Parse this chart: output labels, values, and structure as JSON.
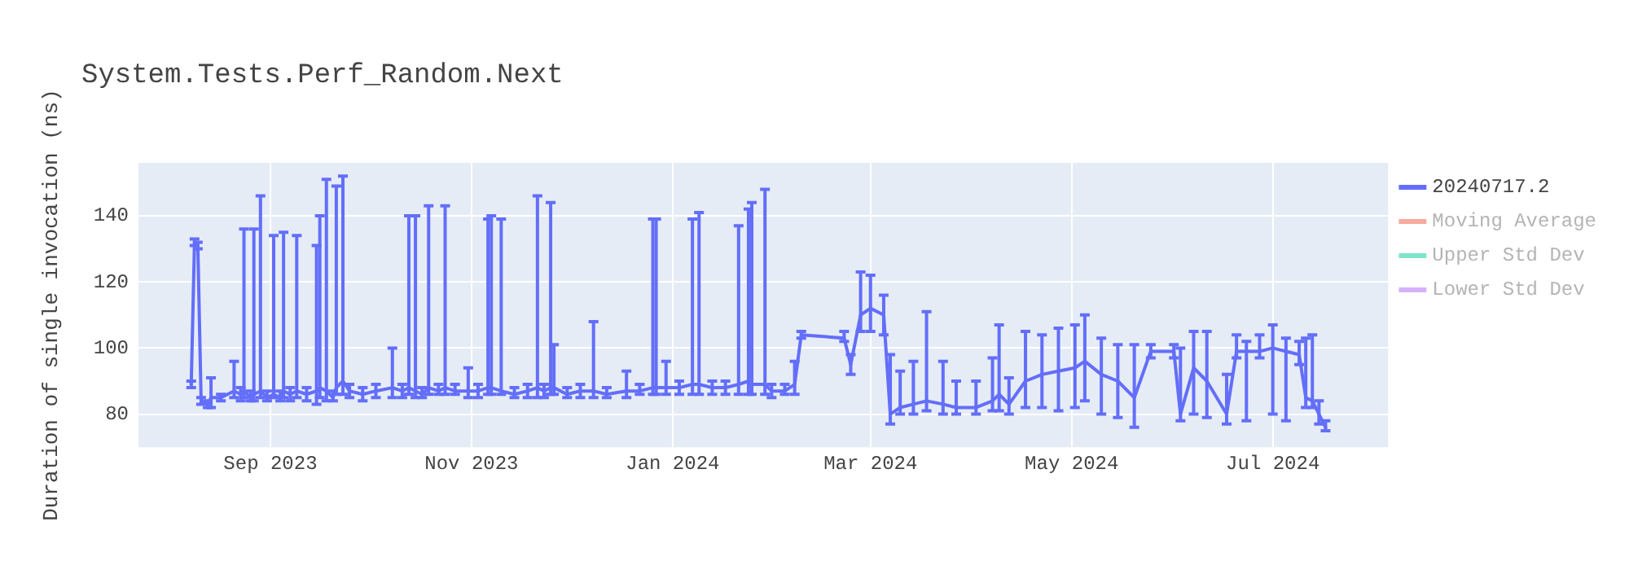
{
  "chart_data": {
    "type": "line",
    "title": "System.Tests.Perf_Random.Next",
    "ylabel": "Duration of single invocation (ns)",
    "xlim": [
      "2023-07-23",
      "2024-08-05"
    ],
    "xticks": [
      {
        "value": "2023-09-01",
        "label": "Sep 2023"
      },
      {
        "value": "2023-11-01",
        "label": "Nov 2023"
      },
      {
        "value": "2024-01-01",
        "label": "Jan 2024"
      },
      {
        "value": "2024-03-01",
        "label": "Mar 2024"
      },
      {
        "value": "2024-05-01",
        "label": "May 2024"
      },
      {
        "value": "2024-07-01",
        "label": "Jul 2024"
      }
    ],
    "ylim": [
      70,
      156
    ],
    "yticks": [
      80,
      100,
      120,
      140
    ],
    "grid": true,
    "legend": "right",
    "marker": "none",
    "series": [
      {
        "name": "20240717.2",
        "color": "#636efa",
        "x": [
          "2023-08-08",
          "2023-08-09",
          "2023-08-10",
          "2023-08-11",
          "2023-08-13",
          "2023-08-14",
          "2023-08-17",
          "2023-08-21",
          "2023-08-23",
          "2023-08-24",
          "2023-08-26",
          "2023-08-27",
          "2023-08-29",
          "2023-08-31",
          "2023-09-02",
          "2023-09-04",
          "2023-09-05",
          "2023-09-07",
          "2023-09-09",
          "2023-09-12",
          "2023-09-15",
          "2023-09-16",
          "2023-09-18",
          "2023-09-20",
          "2023-09-21",
          "2023-09-23",
          "2023-09-25",
          "2023-09-29",
          "2023-10-03",
          "2023-10-08",
          "2023-10-11",
          "2023-10-13",
          "2023-10-15",
          "2023-10-17",
          "2023-10-19",
          "2023-10-22",
          "2023-10-24",
          "2023-10-27",
          "2023-10-31",
          "2023-11-03",
          "2023-11-06",
          "2023-11-07",
          "2023-11-10",
          "2023-11-14",
          "2023-11-18",
          "2023-11-21",
          "2023-11-23",
          "2023-11-25",
          "2023-11-26",
          "2023-11-30",
          "2023-12-04",
          "2023-12-08",
          "2023-12-12",
          "2023-12-18",
          "2023-12-22",
          "2023-12-26",
          "2023-12-27",
          "2023-12-30",
          "2024-01-03",
          "2024-01-07",
          "2024-01-09",
          "2024-01-13",
          "2024-01-17",
          "2024-01-21",
          "2024-01-24",
          "2024-01-25",
          "2024-01-29",
          "2024-01-31",
          "2024-02-04",
          "2024-02-07",
          "2024-02-09",
          "2024-02-22",
          "2024-02-24",
          "2024-02-27",
          "2024-03-01",
          "2024-03-05",
          "2024-03-07",
          "2024-03-10",
          "2024-03-14",
          "2024-03-18",
          "2024-03-23",
          "2024-03-27",
          "2024-04-02",
          "2024-04-07",
          "2024-04-09",
          "2024-04-12",
          "2024-04-17",
          "2024-04-22",
          "2024-04-27",
          "2024-05-02",
          "2024-05-05",
          "2024-05-10",
          "2024-05-15",
          "2024-05-20",
          "2024-05-25",
          "2024-06-01",
          "2024-06-03",
          "2024-06-07",
          "2024-06-11",
          "2024-06-17",
          "2024-06-20",
          "2024-06-23",
          "2024-06-27",
          "2024-07-01",
          "2024-07-05",
          "2024-07-09",
          "2024-07-11",
          "2024-07-13",
          "2024-07-15",
          "2024-07-17"
        ],
        "values": [
          89,
          132,
          131,
          84,
          83,
          85,
          85,
          87,
          86,
          87,
          85,
          86,
          87,
          85,
          86,
          85,
          87,
          86,
          87,
          86,
          87,
          88,
          87,
          85,
          88,
          90,
          87,
          86,
          87,
          88,
          87,
          88,
          87,
          86,
          88,
          87,
          88,
          87,
          87,
          87,
          88,
          88,
          87,
          86,
          87,
          88,
          87,
          88,
          88,
          86,
          87,
          87,
          86,
          87,
          87,
          88,
          88,
          88,
          88,
          89,
          89,
          88,
          88,
          89,
          90,
          89,
          89,
          87,
          87,
          89,
          104,
          103,
          95,
          110,
          112,
          110,
          80,
          82,
          83,
          84,
          83,
          82,
          82,
          84,
          86,
          83,
          90,
          92,
          93,
          94,
          96,
          92,
          90,
          85,
          99,
          99,
          80,
          94,
          90,
          80,
          99,
          99,
          99,
          100,
          99,
          98,
          85,
          84,
          80,
          76
        ],
        "errors": [
          [
            88,
            90
          ],
          [
            131,
            133
          ],
          [
            130,
            132
          ],
          [
            83,
            85
          ],
          [
            82,
            84
          ],
          [
            82,
            91
          ],
          [
            84,
            86
          ],
          [
            85,
            96
          ],
          [
            84,
            88
          ],
          [
            85,
            136
          ],
          [
            84,
            87
          ],
          [
            84,
            136
          ],
          [
            85,
            146
          ],
          [
            84,
            87
          ],
          [
            85,
            134
          ],
          [
            84,
            87
          ],
          [
            85,
            135
          ],
          [
            84,
            88
          ],
          [
            85,
            134
          ],
          [
            84,
            88
          ],
          [
            83,
            131
          ],
          [
            85,
            140
          ],
          [
            84,
            151
          ],
          [
            84,
            87
          ],
          [
            86,
            149
          ],
          [
            86,
            152
          ],
          [
            85,
            89
          ],
          [
            84,
            88
          ],
          [
            85,
            89
          ],
          [
            85,
            100
          ],
          [
            85,
            89
          ],
          [
            86,
            140
          ],
          [
            85,
            140
          ],
          [
            85,
            88
          ],
          [
            86,
            143
          ],
          [
            86,
            89
          ],
          [
            86,
            143
          ],
          [
            86,
            89
          ],
          [
            85,
            94
          ],
          [
            85,
            89
          ],
          [
            86,
            139
          ],
          [
            86,
            140
          ],
          [
            86,
            139
          ],
          [
            85,
            88
          ],
          [
            85,
            89
          ],
          [
            85,
            146
          ],
          [
            85,
            89
          ],
          [
            86,
            144
          ],
          [
            86,
            101
          ],
          [
            85,
            88
          ],
          [
            85,
            89
          ],
          [
            85,
            108
          ],
          [
            85,
            88
          ],
          [
            85,
            93
          ],
          [
            86,
            89
          ],
          [
            86,
            139
          ],
          [
            86,
            139
          ],
          [
            86,
            96
          ],
          [
            86,
            90
          ],
          [
            86,
            139
          ],
          [
            86,
            141
          ],
          [
            86,
            90
          ],
          [
            86,
            90
          ],
          [
            86,
            137
          ],
          [
            86,
            142
          ],
          [
            86,
            144
          ],
          [
            86,
            148
          ],
          [
            85,
            89
          ],
          [
            86,
            89
          ],
          [
            86,
            96
          ],
          [
            103,
            105
          ],
          [
            102,
            105
          ],
          [
            92,
            98
          ],
          [
            105,
            123
          ],
          [
            105,
            122
          ],
          [
            104,
            116
          ],
          [
            77,
            98
          ],
          [
            80,
            93
          ],
          [
            80,
            96
          ],
          [
            81,
            111
          ],
          [
            80,
            96
          ],
          [
            80,
            90
          ],
          [
            80,
            90
          ],
          [
            81,
            97
          ],
          [
            81,
            107
          ],
          [
            80,
            91
          ],
          [
            82,
            105
          ],
          [
            82,
            104
          ],
          [
            81,
            106
          ],
          [
            82,
            107
          ],
          [
            84,
            110
          ],
          [
            80,
            103
          ],
          [
            79,
            101
          ],
          [
            76,
            101
          ],
          [
            97,
            101
          ],
          [
            97,
            101
          ],
          [
            78,
            100
          ],
          [
            80,
            105
          ],
          [
            79,
            105
          ],
          [
            77,
            92
          ],
          [
            97,
            104
          ],
          [
            78,
            102
          ],
          [
            97,
            104
          ],
          [
            80,
            107
          ],
          [
            78,
            103
          ],
          [
            95,
            102
          ],
          [
            82,
            103
          ],
          [
            82,
            104
          ],
          [
            77,
            84
          ],
          [
            75,
            78
          ]
        ]
      },
      {
        "name": "Moving Average",
        "color": "#ef553b"
      },
      {
        "name": "Upper Std Dev",
        "color": "#00cc96"
      },
      {
        "name": "Lower Std Dev",
        "color": "#ab63fa"
      }
    ]
  }
}
